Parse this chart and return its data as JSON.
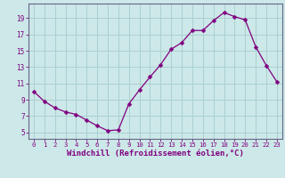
{
  "x": [
    0,
    1,
    2,
    3,
    4,
    5,
    6,
    7,
    8,
    9,
    10,
    11,
    12,
    13,
    14,
    15,
    16,
    17,
    18,
    19,
    20,
    21,
    22,
    23
  ],
  "y": [
    10.0,
    8.8,
    8.0,
    7.5,
    7.2,
    6.5,
    5.8,
    5.2,
    5.3,
    8.5,
    10.2,
    11.8,
    13.3,
    15.2,
    16.0,
    17.5,
    17.5,
    18.7,
    19.7,
    19.2,
    18.8,
    15.5,
    13.2,
    11.2
  ],
  "line_color": "#800080",
  "marker": "D",
  "marker_size": 2.5,
  "bg_color": "#cce8e8",
  "grid_color": "#aad0d0",
  "axis_color": "#666688",
  "tick_color": "#800080",
  "xlabel": "Windchill (Refroidissement éolien,°C)",
  "xlabel_fontsize": 6.5,
  "yticks": [
    5,
    7,
    9,
    11,
    13,
    15,
    17,
    19
  ],
  "ylim": [
    4.2,
    20.8
  ],
  "xlim": [
    -0.5,
    23.5
  ]
}
